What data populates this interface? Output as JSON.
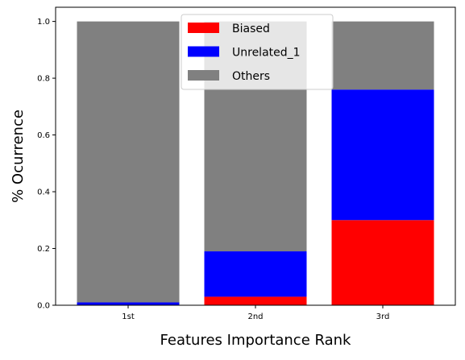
{
  "chart_data": {
    "type": "bar",
    "stacked": true,
    "categories": [
      "1st",
      "2nd",
      "3rd"
    ],
    "series": [
      {
        "name": "Biased",
        "color": "#ff0000",
        "values": [
          0.0,
          0.03,
          0.3
        ]
      },
      {
        "name": "Unrelated_1",
        "color": "#0000ff",
        "values": [
          0.01,
          0.16,
          0.46
        ]
      },
      {
        "name": "Others",
        "color": "#808080",
        "values": [
          0.99,
          0.81,
          0.24
        ]
      }
    ],
    "xlabel": "Features Importance Rank",
    "ylabel": "% Ocurrence",
    "ylim": [
      0,
      1.05
    ],
    "yticks": [
      "0.0",
      "0.2",
      "0.4",
      "0.6",
      "0.8",
      "1.0"
    ],
    "grid": false,
    "legend_position": "top-center"
  }
}
